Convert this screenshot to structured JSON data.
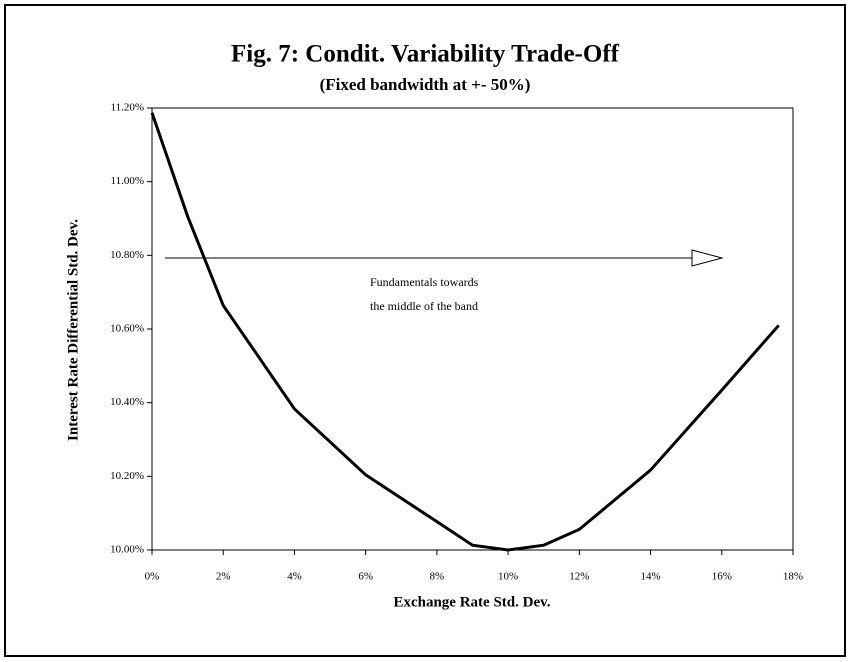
{
  "chart_data": {
    "type": "line",
    "title": "Fig. 7: Condit. Variability Trade-Off",
    "subtitle": "(Fixed bandwidth at +- 50%)",
    "x_label": "Exchange Rate Std. Dev.",
    "y_label": "Interest Rate Differential Std. Dev.",
    "annotation": [
      "Fundamentals towards",
      "the middle of the band"
    ],
    "x": [
      0,
      1,
      2,
      4,
      6,
      8,
      9,
      10,
      11,
      12,
      14,
      16,
      17.6
    ],
    "series": [
      {
        "color": "#000000",
        "values": [
          11.187,
          10.906,
          10.664,
          10.383,
          10.204,
          10.077,
          10.013,
          10.0,
          10.013,
          10.056,
          10.217,
          10.434,
          10.61
        ]
      }
    ],
    "xlim": [
      0,
      18
    ],
    "xticks": [
      {
        "value": 0,
        "label": "0%"
      },
      {
        "value": 2,
        "label": "2%"
      },
      {
        "value": 4,
        "label": "4%"
      },
      {
        "value": 6,
        "label": "6%"
      },
      {
        "value": 8,
        "label": "8%"
      },
      {
        "value": 10,
        "label": "10%"
      },
      {
        "value": 12,
        "label": "12%"
      },
      {
        "value": 14,
        "label": "14%"
      },
      {
        "value": 16,
        "label": "16%"
      },
      {
        "value": 18,
        "label": "18%"
      }
    ],
    "ylim": [
      10.0,
      11.2
    ],
    "yticks": [
      {
        "value": 10.0,
        "label": "10.00%"
      },
      {
        "value": 10.2,
        "label": "10.20%"
      },
      {
        "value": 10.4,
        "label": "10.40%"
      },
      {
        "value": 10.6,
        "label": "10.60%"
      },
      {
        "value": 10.8,
        "label": "10.80%"
      },
      {
        "value": 11.0,
        "label": "11.00%"
      },
      {
        "value": 11.2,
        "label": "11.20%"
      }
    ]
  }
}
